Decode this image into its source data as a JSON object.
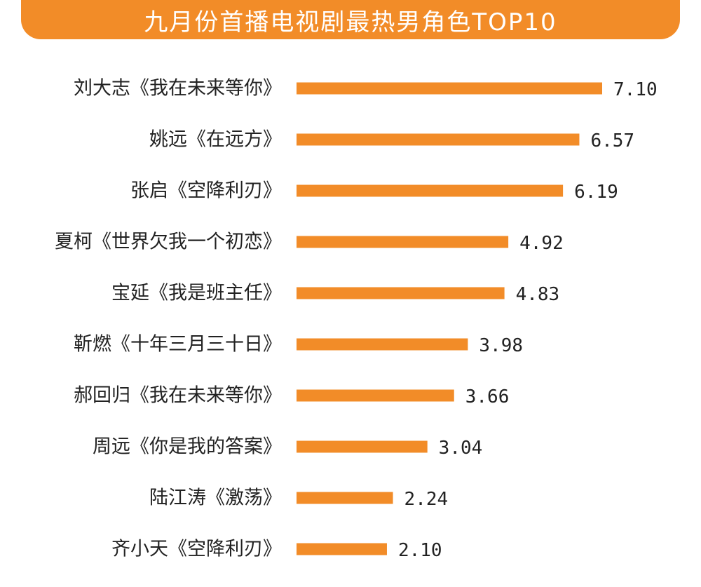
{
  "header": {
    "title": "九月份首播电视剧最热男角色TOP10"
  },
  "colors": {
    "accent": "#f28c28",
    "text": "#222222",
    "background": "#ffffff"
  },
  "chart_data": {
    "type": "bar",
    "orientation": "horizontal",
    "title": "九月份首播电视剧最热男角色TOP10",
    "categories": [
      "刘大志《我在未来等你》",
      "姚远《在远方》",
      "张启《空降利刃》",
      "夏柯《世界欠我一个初恋》",
      "宝延《我是班主任》",
      "靳燃《十年三月三十日》",
      "郝回归《我在未来等你》",
      "周远《你是我的答案》",
      "陆江涛《激荡》",
      "齐小天《空降利刃》"
    ],
    "values": [
      7.1,
      6.57,
      6.19,
      4.92,
      4.83,
      3.98,
      3.66,
      3.04,
      2.24,
      2.1
    ],
    "value_labels": [
      "7.10",
      "6.57",
      "6.19",
      "4.92",
      "4.83",
      "3.98",
      "3.66",
      "3.04",
      "2.24",
      "2.10"
    ],
    "xlim": [
      0,
      7.1
    ],
    "grid": false,
    "legend": "none"
  }
}
